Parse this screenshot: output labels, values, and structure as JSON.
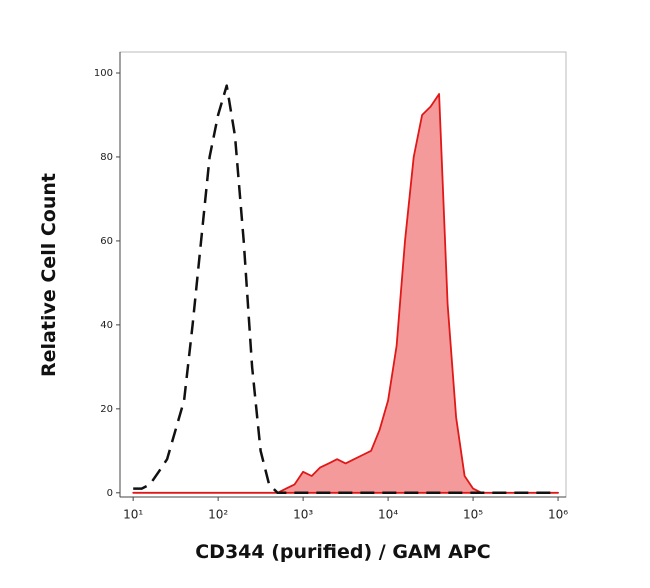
{
  "chart_data": {
    "type": "histogram-overlay",
    "x_label": "CD344 (purified) / GAM APC",
    "y_label": "Relative Cell Count",
    "x": [
      10,
      12.6,
      15.8,
      20,
      25.1,
      31.6,
      39.8,
      50.1,
      63.1,
      79.4,
      100,
      126,
      158,
      200,
      251,
      316,
      398,
      501,
      631,
      794,
      1000,
      1260,
      1580,
      2000,
      2510,
      3160,
      3980,
      5010,
      6310,
      7940,
      10000,
      12600,
      15800,
      20000,
      25100,
      31600,
      39800,
      50100,
      63100,
      79400,
      100000,
      125900,
      158500,
      199500,
      251200,
      316200,
      398100,
      501200,
      631000,
      794300,
      1000000
    ],
    "series": [
      {
        "color": "#111111",
        "style": "dashed",
        "filled": false,
        "values": [
          1,
          1,
          2,
          5,
          8,
          15,
          22,
          40,
          60,
          80,
          90,
          97,
          85,
          60,
          30,
          10,
          2,
          0,
          0,
          0,
          0,
          0,
          0,
          0,
          0,
          0,
          0,
          0,
          0,
          0,
          0,
          0,
          0,
          0,
          0,
          0,
          0,
          0,
          0,
          0,
          0,
          0,
          0,
          0,
          0,
          0,
          0,
          0,
          0,
          0,
          0
        ]
      },
      {
        "color": "#e01818",
        "fill_color": "#f59a9a",
        "style": "solid",
        "filled": true,
        "values": [
          0,
          0,
          0,
          0,
          0,
          0,
          0,
          0,
          0,
          0,
          0,
          0,
          0,
          0,
          0,
          0,
          0,
          0,
          1,
          2,
          5,
          4,
          6,
          7,
          8,
          7,
          8,
          9,
          10,
          15,
          22,
          35,
          60,
          80,
          90,
          92,
          95,
          45,
          18,
          4,
          1,
          0,
          0,
          0,
          0,
          0,
          0,
          0,
          0,
          0,
          0
        ]
      }
    ],
    "xlog": true,
    "xlim": [
      7,
      1240000
    ],
    "xticks": [
      {
        "value": 10,
        "label": "10¹"
      },
      {
        "value": 100,
        "label": "10²"
      },
      {
        "value": 1000,
        "label": "10³"
      },
      {
        "value": 10000,
        "label": "10⁴"
      },
      {
        "value": 100000,
        "label": "10⁵"
      },
      {
        "value": 1000000,
        "label": "10⁶"
      }
    ],
    "ylim": [
      -1,
      105
    ],
    "yticks": [
      0,
      20,
      40,
      60,
      80,
      100
    ]
  }
}
